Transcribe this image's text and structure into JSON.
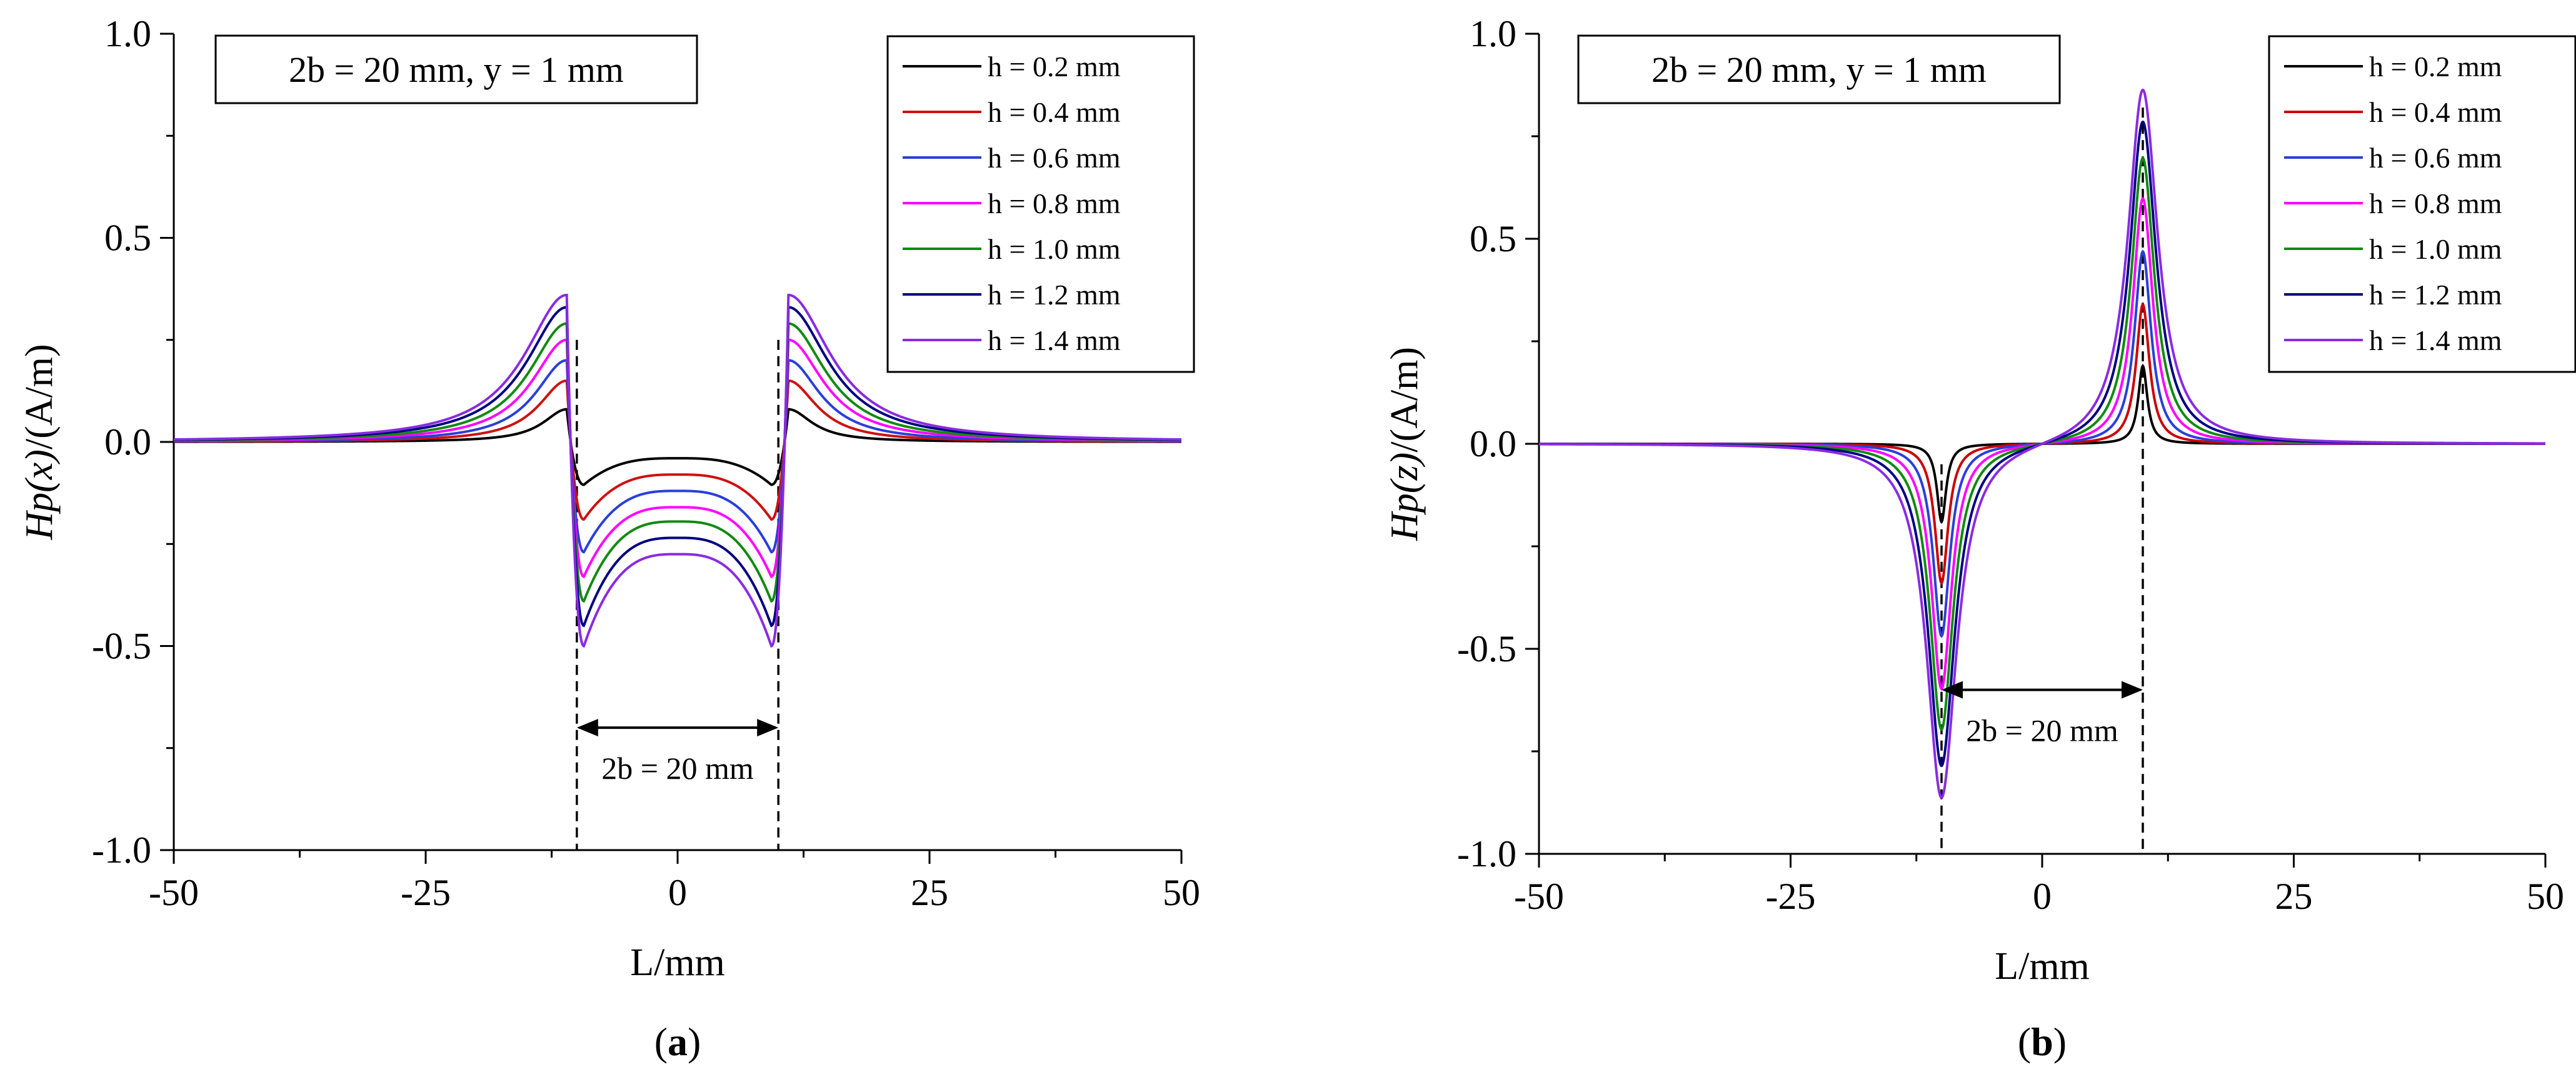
{
  "figure": {
    "panels": [
      "(a)",
      "(b)"
    ]
  },
  "chart_data": [
    {
      "type": "line",
      "panel_label": "(a)",
      "panel_letter": "a",
      "component": "x",
      "title": "",
      "xlabel": "L/mm",
      "ylabel": "Hp(x)/(A/m)",
      "ylabel_parts": {
        "italic": "Hp(x)",
        "rest": "/(A/m)"
      },
      "xlim": [
        -50,
        50
      ],
      "ylim": [
        -1.0,
        1.0
      ],
      "x_ticks": [
        -50,
        -25,
        0,
        25,
        50
      ],
      "x_tick_labels": [
        "-50",
        "-25",
        "0",
        "25",
        "50"
      ],
      "y_ticks": [
        -1.0,
        -0.5,
        0.0,
        0.5,
        1.0
      ],
      "y_tick_labels": [
        "-1.0",
        "-0.5",
        "0.0",
        "0.5",
        "1.0"
      ],
      "grid": false,
      "legend_position": "top-right",
      "condition_box": "2b = 20 mm, y = 1 mm",
      "span_annotation": {
        "text": "2b = 20 mm",
        "x_from": -10,
        "x_to": 10,
        "y": -0.7
      },
      "dashed_markers": [
        -10,
        10
      ],
      "series": [
        {
          "name": "h = 0.2 mm",
          "color": "#000000",
          "peak": 0.08,
          "edge_min": -0.105,
          "center": -0.04
        },
        {
          "name": "h = 0.4 mm",
          "color": "#d01010",
          "peak": 0.15,
          "edge_min": -0.19,
          "center": -0.08
        },
        {
          "name": "h = 0.6 mm",
          "color": "#2a3fd8",
          "peak": 0.2,
          "edge_min": -0.27,
          "center": -0.12
        },
        {
          "name": "h = 0.8 mm",
          "color": "#ff00ff",
          "peak": 0.25,
          "edge_min": -0.33,
          "center": -0.16
        },
        {
          "name": "h = 1.0 mm",
          "color": "#108a10",
          "peak": 0.29,
          "edge_min": -0.39,
          "center": -0.195
        },
        {
          "name": "h = 1.2 mm",
          "color": "#000080",
          "peak": 0.33,
          "edge_min": -0.45,
          "center": -0.235
        },
        {
          "name": "h = 1.4 mm",
          "color": "#8a2be2",
          "peak": 0.36,
          "edge_min": -0.5,
          "center": -0.275
        }
      ]
    },
    {
      "type": "line",
      "panel_label": "(b)",
      "panel_letter": "b",
      "component": "z",
      "title": "",
      "xlabel": "L/mm",
      "ylabel": "Hp(z)/(A/m)",
      "ylabel_parts": {
        "italic": "Hp(z)",
        "rest": "/(A/m)"
      },
      "xlim": [
        -50,
        50
      ],
      "ylim": [
        -1.0,
        1.0
      ],
      "x_ticks": [
        -50,
        -25,
        0,
        25,
        50
      ],
      "x_tick_labels": [
        "-50",
        "-25",
        "0",
        "25",
        "50"
      ],
      "y_ticks": [
        -1.0,
        -0.5,
        0.0,
        0.5,
        1.0
      ],
      "y_tick_labels": [
        "-1.0",
        "-0.5",
        "0.0",
        "0.5",
        "1.0"
      ],
      "grid": false,
      "legend_position": "top-right",
      "condition_box": "2b = 20 mm, y = 1 mm",
      "span_annotation": {
        "text": "2b = 20 mm",
        "x_from": -10,
        "x_to": 10,
        "y": -0.6
      },
      "dashed_markers": [
        -10,
        10
      ],
      "series": [
        {
          "name": "h = 0.2 mm",
          "color": "#000000",
          "peak": 0.19,
          "width": 0.55
        },
        {
          "name": "h = 0.4 mm",
          "color": "#cc0000",
          "peak": 0.34,
          "width": 0.8
        },
        {
          "name": "h = 0.6 mm",
          "color": "#2a3fd8",
          "peak": 0.47,
          "width": 1.0
        },
        {
          "name": "h = 0.8 mm",
          "color": "#ff00ff",
          "peak": 0.6,
          "width": 1.2
        },
        {
          "name": "h = 1.0 mm",
          "color": "#108a10",
          "peak": 0.7,
          "width": 1.4
        },
        {
          "name": "h = 1.2 mm",
          "color": "#000080",
          "peak": 0.79,
          "width": 1.6
        },
        {
          "name": "h = 1.4 mm",
          "color": "#8a2be2",
          "peak": 0.87,
          "width": 1.8
        }
      ]
    }
  ]
}
